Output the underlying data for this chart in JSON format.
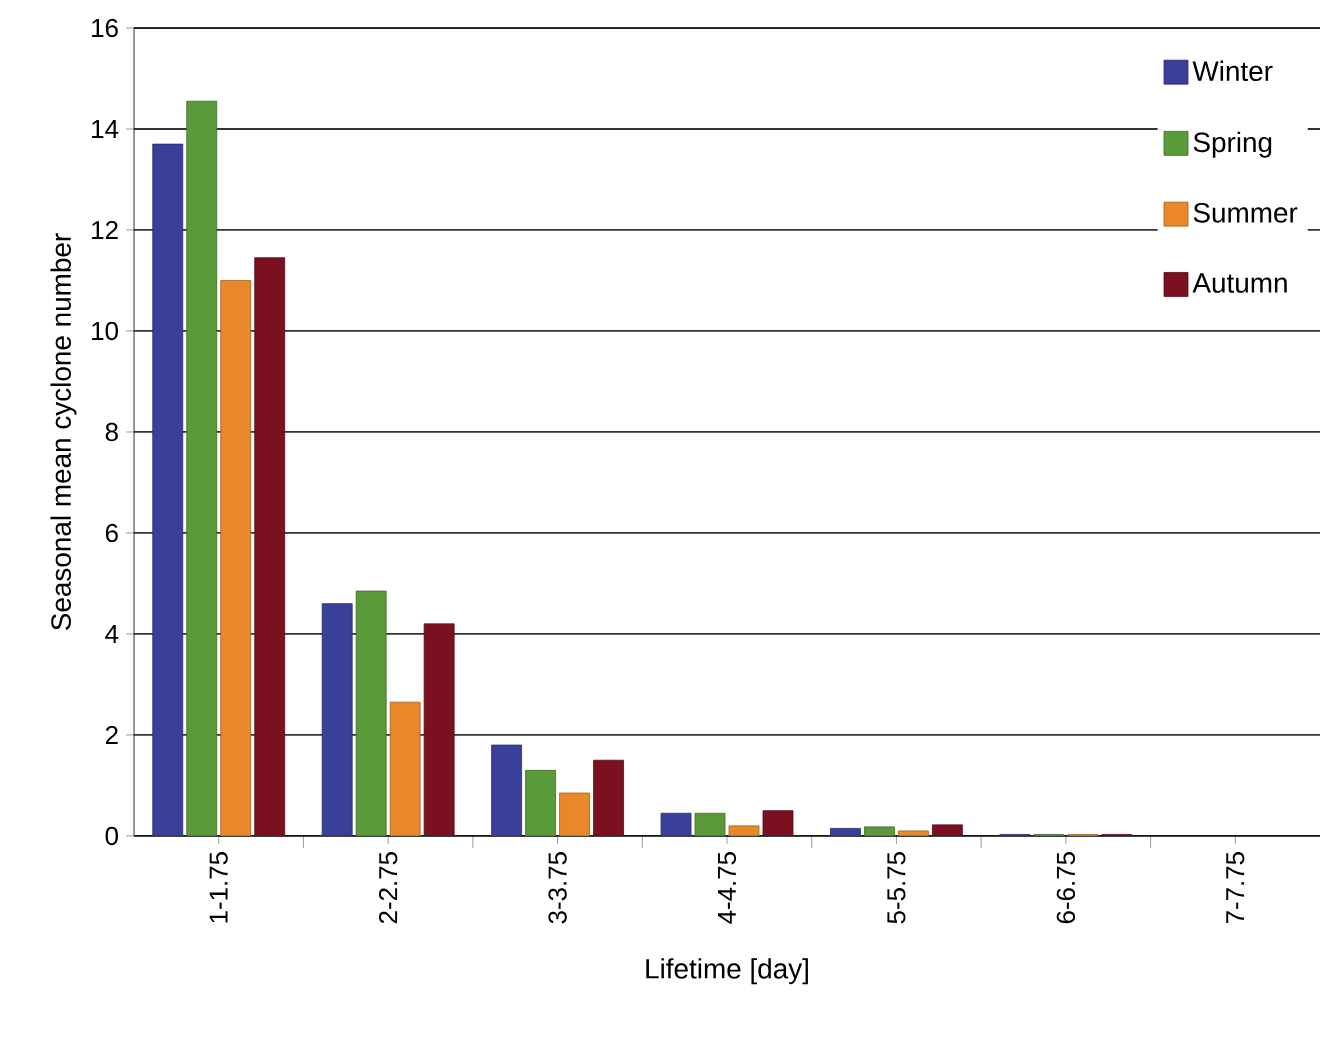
{
  "chart_data": {
    "type": "bar",
    "xlabel": "Lifetime [day]",
    "ylabel": "Seasonal mean cyclone number",
    "categories": [
      "1-1.75",
      "2-2.75",
      "3-3.75",
      "4-4.75",
      "5-5.75",
      "6-6.75",
      "7-7.75"
    ],
    "series": [
      {
        "name": "Winter",
        "color": "#3a3f9a",
        "values": [
          13.7,
          4.6,
          1.8,
          0.45,
          0.15,
          0.03,
          null
        ]
      },
      {
        "name": "Spring",
        "color": "#5a9a3a",
        "values": [
          14.55,
          4.85,
          1.3,
          0.45,
          0.18,
          0.03,
          null
        ]
      },
      {
        "name": "Summer",
        "color": "#e8882a",
        "values": [
          11.0,
          2.65,
          0.85,
          0.2,
          0.1,
          0.03,
          null
        ]
      },
      {
        "name": "Autumn",
        "color": "#7a1020",
        "values": [
          11.45,
          4.2,
          1.5,
          0.5,
          0.22,
          0.03,
          null
        ]
      }
    ],
    "ylim": [
      0,
      16
    ],
    "yticks": [
      0,
      2,
      4,
      6,
      8,
      10,
      12,
      14,
      16
    ],
    "grid": "y",
    "legend": "top right"
  }
}
